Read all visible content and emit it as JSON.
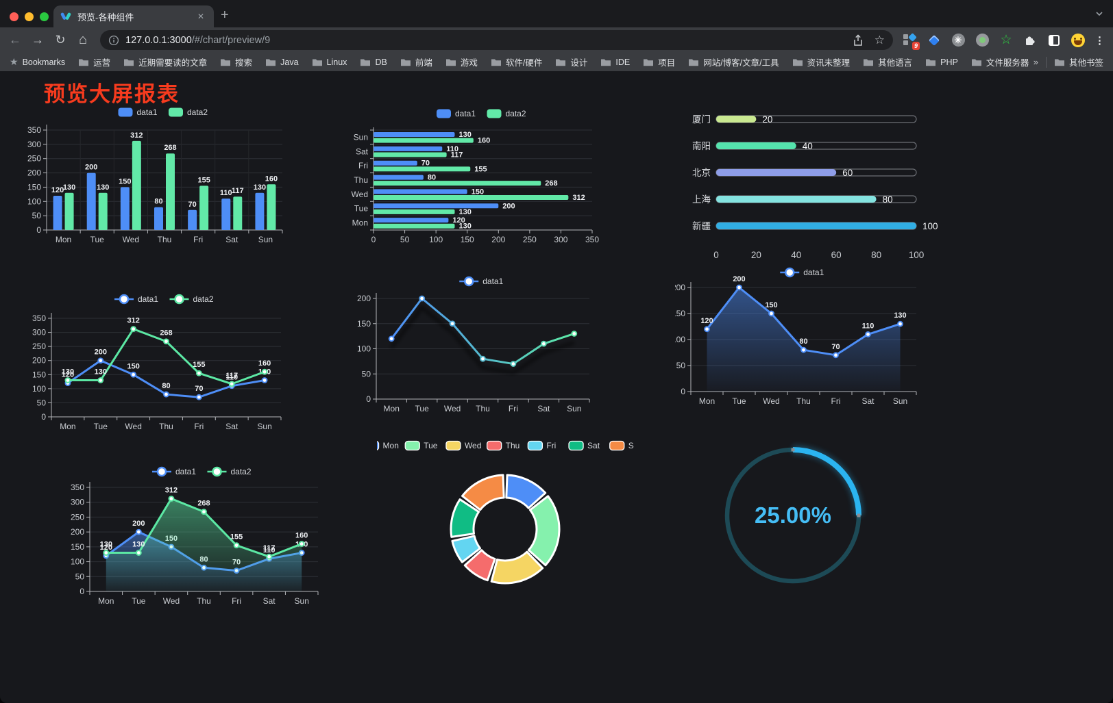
{
  "browser": {
    "tab_title": "预览-各种组件",
    "new_tab_label": "+",
    "close_label": "✕",
    "url_host": "127.0.0.1:3000",
    "url_path": "/#/chart/preview/9",
    "bookmarks_label": "Bookmarks",
    "bookmarks": [
      "运营",
      "近期需要读的文章",
      "搜索",
      "Java",
      "Linux",
      "DB",
      "前端",
      "游戏",
      "软件/硬件",
      "设计",
      "IDE",
      "项目",
      "网站/博客/文章/工具",
      "资讯未整理",
      "其他语言",
      "PHP",
      "文件服务器"
    ],
    "bookmarks_overflow": "»",
    "other_bookmarks": "其他书签",
    "extension_badge": "9",
    "menu_dots": "⋮"
  },
  "page": {
    "title": "预览大屏报表",
    "title_color": "#f73b1e",
    "background": "#17181c"
  },
  "chart_data": [
    {
      "id": "c1",
      "type": "bar",
      "categories": [
        "Mon",
        "Tue",
        "Wed",
        "Thu",
        "Fri",
        "Sat",
        "Sun"
      ],
      "series": [
        {
          "name": "data1",
          "color": "#4E8EF7",
          "values": [
            120,
            200,
            150,
            80,
            70,
            110,
            130
          ]
        },
        {
          "name": "data2",
          "color": "#62E9A8",
          "values": [
            130,
            130,
            312,
            268,
            155,
            117,
            160
          ]
        }
      ],
      "ylim": [
        0,
        350
      ],
      "ystep": 50,
      "grid": true,
      "legend_position": "top"
    },
    {
      "id": "c2",
      "type": "bar",
      "orientation": "horizontal",
      "categories_top_to_bottom": [
        "Sun",
        "Sat",
        "Fri",
        "Thu",
        "Wed",
        "Tue",
        "Mon"
      ],
      "series": [
        {
          "name": "data1",
          "color": "#4E8EF7",
          "values": [
            130,
            110,
            70,
            80,
            150,
            200,
            120
          ]
        },
        {
          "name": "data2",
          "color": "#62E9A8",
          "values": [
            160,
            117,
            155,
            268,
            312,
            130,
            130
          ]
        }
      ],
      "xlim": [
        0,
        350
      ],
      "xstep": 50,
      "grid": true,
      "legend_position": "top"
    },
    {
      "id": "c3",
      "type": "bar",
      "style": "capsule",
      "categories": [
        "厦门",
        "南阳",
        "北京",
        "上海",
        "新疆"
      ],
      "values": [
        20,
        40,
        60,
        80,
        100
      ],
      "colors": [
        "#C9E890",
        "#55E3AD",
        "#8E9DE8",
        "#84E3E0",
        "#31AEE4"
      ],
      "xlim": [
        0,
        100
      ],
      "xticks": [
        0,
        20,
        40,
        60,
        80,
        100
      ]
    },
    {
      "id": "c4",
      "type": "line",
      "categories": [
        "Mon",
        "Tue",
        "Wed",
        "Thu",
        "Fri",
        "Sat",
        "Sun"
      ],
      "series": [
        {
          "name": "data1",
          "color": "#4E8EF7",
          "values": [
            120,
            200,
            150,
            80,
            70,
            110,
            130
          ]
        },
        {
          "name": "data2",
          "color": "#5CE8A4",
          "values": [
            130,
            130,
            312,
            268,
            155,
            117,
            160
          ]
        }
      ],
      "ylim": [
        0,
        350
      ],
      "ystep": 50,
      "point_labels": true,
      "legend_position": "top"
    },
    {
      "id": "c5",
      "type": "line",
      "categories": [
        "Mon",
        "Tue",
        "Wed",
        "Thu",
        "Fri",
        "Sat",
        "Sun"
      ],
      "series": [
        {
          "name": "data1",
          "gradient": [
            "#4E8EF7",
            "#5CE8A4"
          ],
          "values": [
            120,
            200,
            150,
            80,
            70,
            110,
            130
          ]
        }
      ],
      "ylim": [
        0,
        200
      ],
      "ystep": 50,
      "point_labels": false,
      "legend_position": "top"
    },
    {
      "id": "c6",
      "type": "area",
      "categories": [
        "Mon",
        "Tue",
        "Wed",
        "Thu",
        "Fri",
        "Sat",
        "Sun"
      ],
      "series": [
        {
          "name": "data1",
          "color": "#4E8EF7",
          "values": [
            120,
            200,
            150,
            80,
            70,
            110,
            130
          ]
        }
      ],
      "ylim": [
        0,
        200
      ],
      "ystep": 50,
      "point_labels": true,
      "legend_position": "top"
    },
    {
      "id": "c7",
      "type": "area",
      "categories": [
        "Mon",
        "Tue",
        "Wed",
        "Thu",
        "Fri",
        "Sat",
        "Sun"
      ],
      "series": [
        {
          "name": "data1",
          "color": "#4E8EF7",
          "values": [
            120,
            200,
            150,
            80,
            70,
            110,
            130
          ]
        },
        {
          "name": "data2",
          "color": "#5CE8A4",
          "values": [
            130,
            130,
            312,
            268,
            155,
            117,
            160
          ]
        }
      ],
      "ylim": [
        0,
        350
      ],
      "ystep": 50,
      "point_labels": true,
      "legend_position": "top"
    },
    {
      "id": "c8",
      "type": "pie",
      "shape": "donut",
      "categories": [
        "Mon",
        "Tue",
        "Wed",
        "Thu",
        "Fri",
        "Sat",
        "Sun"
      ],
      "values": [
        120,
        200,
        150,
        80,
        70,
        110,
        130
      ],
      "colors": [
        "#4E8EF7",
        "#85F1AD",
        "#F5D563",
        "#F56C6C",
        "#63D5F1",
        "#10BC84",
        "#F58B45"
      ],
      "border_color": "#ffffff",
      "legend_position": "top"
    },
    {
      "id": "c9",
      "type": "gauge",
      "value": 25,
      "label": "25.00%",
      "color": "#2BB4F0",
      "track_color": "#1D4A56",
      "text_color": "#45BDF5"
    }
  ]
}
